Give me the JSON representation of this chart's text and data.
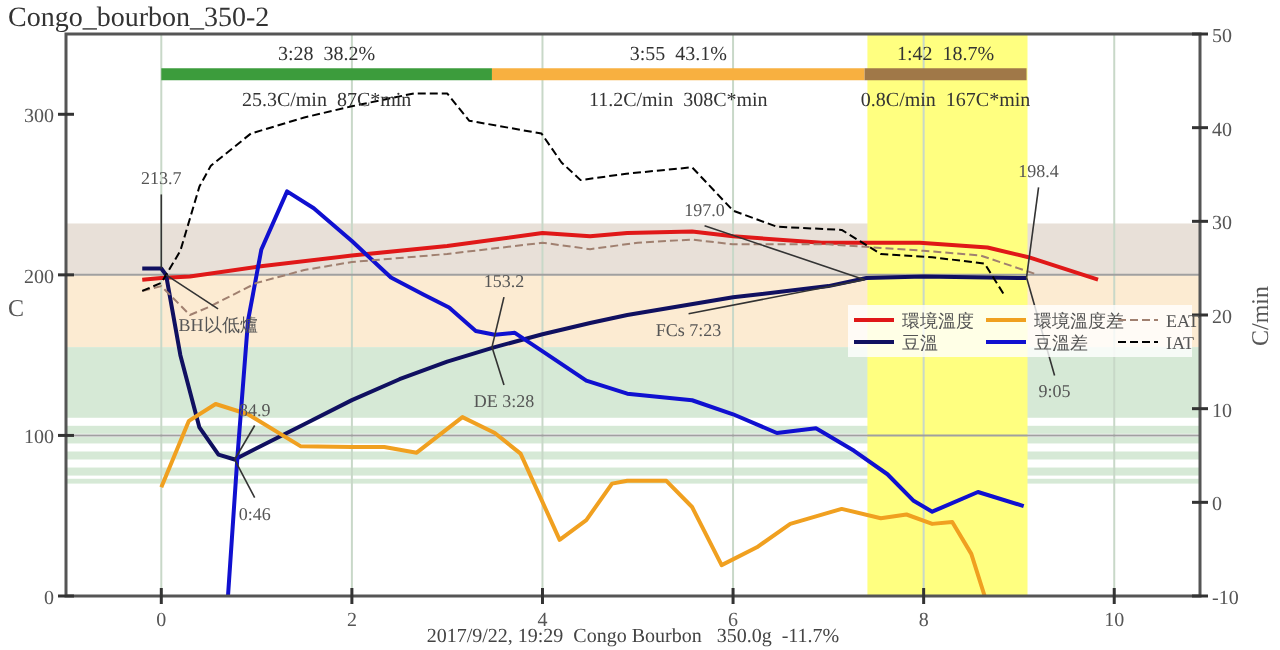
{
  "chart_data": {
    "type": "line",
    "title": "Congo_bourbon_350-2",
    "ylabel": "C",
    "y2label": "C/min",
    "xlim": [
      -1,
      10.9
    ],
    "xticks": [
      0,
      2,
      4,
      6,
      8,
      10
    ],
    "ylim": [
      0,
      350
    ],
    "yticks": [
      0,
      100,
      200,
      300
    ],
    "y2lim": [
      -10,
      50
    ],
    "y2ticks": [
      -10,
      0,
      10,
      20,
      30,
      40,
      50
    ],
    "grid": "x",
    "legend": "right",
    "marker": "none",
    "series": [
      {
        "name": "環境溫度",
        "color": "#e01818",
        "line_style": "solid",
        "x": [
          -0.2,
          0,
          0.3,
          1,
          2,
          3,
          4,
          4.5,
          4.89,
          5.57,
          6,
          6.93,
          7.96,
          8.67,
          9.1,
          9.83
        ],
        "values": [
          197,
          198,
          199,
          205,
          212,
          218,
          226,
          224,
          226,
          227,
          224,
          220,
          220,
          217,
          211,
          197
        ]
      },
      {
        "name": "豆溫",
        "color": "#101060",
        "line_style": "solid",
        "x": [
          -0.2,
          0,
          0.05,
          0.2,
          0.4,
          0.6,
          0.77,
          1,
          1.5,
          2,
          2.5,
          3,
          3.5,
          4,
          4.5,
          4.89,
          6,
          7,
          7.4,
          8,
          9.08
        ],
        "values": [
          204,
          204,
          200,
          150,
          105,
          88,
          85,
          92,
          107,
          122,
          135,
          146,
          155,
          163,
          170,
          175,
          186,
          193,
          198,
          199,
          198
        ]
      },
      {
        "name": "環境溫度差",
        "axis": "y2",
        "color": "#f0a020",
        "line_style": "solid",
        "x": [
          0,
          0.29,
          0.57,
          0.91,
          1.46,
          2,
          2.34,
          2.68,
          3.16,
          3.5,
          3.77,
          4.18,
          4.46,
          4.73,
          4.89,
          5.3,
          5.57,
          5.88,
          6.25,
          6.6,
          7.14,
          7.55,
          7.82,
          8.09,
          8.3,
          8.5,
          8.64
        ],
        "values": [
          1.6,
          8.7,
          10.5,
          9.4,
          6.0,
          5.9,
          5.9,
          5.3,
          9.1,
          7.4,
          5.2,
          -4.0,
          -1.9,
          2.0,
          2.3,
          2.3,
          -0.5,
          -6.7,
          -4.8,
          -2.3,
          -0.7,
          -1.7,
          -1.3,
          -2.3,
          -2.1,
          -5.5,
          -10
        ]
      },
      {
        "name": "豆溫差",
        "axis": "y2",
        "color": "#1010d0",
        "line_style": "solid",
        "x": [
          0.7,
          0.8,
          0.91,
          1.05,
          1.32,
          1.6,
          2.0,
          2.41,
          2.75,
          3.02,
          3.3,
          3.5,
          3.71,
          3.99,
          4.46,
          4.89,
          5.57,
          6,
          6.46,
          6.87,
          7.27,
          7.62,
          7.89,
          8.09,
          8.57,
          9.05
        ],
        "values": [
          -10,
          5,
          19.4,
          27,
          33.2,
          31.4,
          27.9,
          24,
          22.2,
          20.8,
          18.3,
          17.9,
          18.1,
          16.2,
          13,
          11.6,
          10.9,
          9.4,
          7.4,
          7.9,
          5.5,
          3.0,
          0.2,
          -1.0,
          1.1,
          -0.4
        ]
      },
      {
        "name": "EAT",
        "color": "#a08070",
        "line_style": "dashed",
        "x": [
          -0.2,
          0,
          0.3,
          0.5,
          1,
          1.5,
          2,
          3,
          4,
          4.5,
          5,
          5.57,
          6,
          7,
          8,
          8.6,
          9.2
        ],
        "values": [
          190,
          193,
          175,
          180,
          195,
          203,
          208,
          213,
          220,
          216,
          220,
          222,
          219,
          219,
          215,
          212,
          200
        ]
      },
      {
        "name": "IAT",
        "color": "#000000",
        "line_style": "dashed",
        "x": [
          -0.2,
          0,
          0.2,
          0.4,
          0.52,
          0.94,
          1.5,
          2,
          2.65,
          3,
          3.23,
          3.99,
          4.2,
          4.4,
          4.88,
          5.57,
          6,
          6.46,
          7.14,
          7.55,
          8.09,
          8.64,
          8.84
        ],
        "values": [
          190,
          195,
          215,
          255,
          268,
          288,
          298,
          305,
          313,
          313,
          296,
          288,
          270,
          259,
          263,
          267,
          240,
          230,
          228,
          213,
          211,
          207,
          188
        ]
      },
      {
        "color": "#3c9c3c",
        "line_style": "solid",
        "x": [
          0,
          3.47
        ],
        "values": [
          325,
          325
        ]
      },
      {
        "color": "#f8b040",
        "line_style": "solid",
        "x": [
          3.47,
          7.38
        ],
        "values": [
          325,
          325
        ]
      },
      {
        "color": "#a07848",
        "line_style": "solid",
        "x": [
          7.38,
          9.08
        ],
        "values": [
          325,
          325
        ]
      }
    ],
    "bands": [
      {
        "axis": "y",
        "from": 200,
        "to": 232,
        "color": "#e8e0d8"
      },
      {
        "axis": "y",
        "from": 155,
        "to": 200,
        "color": "#fcebd2"
      },
      {
        "axis": "y",
        "from": 111,
        "to": 155,
        "color": "#d6e9d6"
      },
      {
        "axis": "y",
        "from": 101,
        "to": 106,
        "color": "#d6e9d6"
      },
      {
        "axis": "y",
        "from": 95,
        "to": 99,
        "color": "#d6e9d6"
      },
      {
        "axis": "y",
        "from": 85,
        "to": 90,
        "color": "#d6e9d6"
      },
      {
        "axis": "y",
        "from": 75,
        "to": 80,
        "color": "#d6e9d6"
      },
      {
        "axis": "y",
        "from": 70,
        "to": 73,
        "color": "#d6e9d6"
      },
      {
        "axis": "x",
        "from": 7.41,
        "to": 9.09,
        "color": "#ffff80"
      }
    ],
    "ref_lines": [
      {
        "axis": "y",
        "value": 100,
        "color": "#a0a0a0"
      },
      {
        "axis": "y",
        "value": 200,
        "color": "#a0a0a0"
      }
    ],
    "annotations": [
      "3:28  38.2%",
      "3:55  43.1%",
      "1:42  18.7%",
      "25.3C/min  87C*min",
      "11.2C/min  308C*min",
      "0.8C/min  167C*min",
      {
        "text": "213.7",
        "x": 0,
        "y": 204
      },
      {
        "text": "BH以低爐",
        "x": 0.05,
        "y": 200
      },
      {
        "text": "84.9",
        "x": 0.77,
        "y": 85
      },
      {
        "text": "0:46",
        "x": 0.77,
        "y": 85
      },
      {
        "text": "153.2",
        "x": 3.47,
        "y": 155
      },
      {
        "text": "DE 3:28",
        "x": 3.47,
        "y": 155
      },
      {
        "text": "197.0",
        "x": 7.38,
        "y": 197
      },
      {
        "text": "FCs 7:23",
        "x": 7.38,
        "y": 197
      },
      {
        "text": "198.4",
        "x": 9.08,
        "y": 198.4
      },
      {
        "text": "9:05",
        "x": 9.08,
        "y": 198.4
      },
      "2017/9/22, 19:29  Congo Bourbon   350.0g  -11.7%"
    ]
  }
}
